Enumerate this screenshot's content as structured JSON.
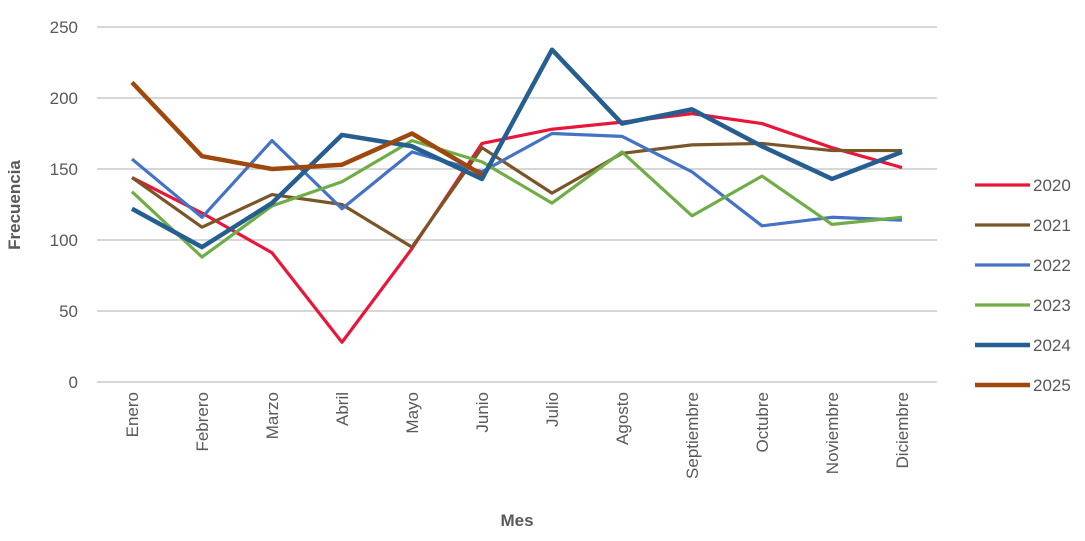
{
  "chart_data": {
    "type": "line",
    "x_label": "Mes",
    "y_label": "Frecuencia",
    "categories": [
      "Enero",
      "Febrero",
      "Marzo",
      "Abril",
      "Mayo",
      "Junio",
      "Julio",
      "Agosto",
      "Septiembre",
      "Octubre",
      "Noviembre",
      "Diciembre"
    ],
    "series": [
      {
        "name": "2020",
        "color": "#e8173a",
        "values": [
          144,
          119,
          91,
          28,
          94,
          168,
          178,
          183,
          189,
          182,
          165,
          151
        ]
      },
      {
        "name": "2021",
        "color": "#7a5527",
        "values": [
          144,
          109,
          132,
          125,
          95,
          165,
          133,
          161,
          167,
          168,
          163,
          163
        ]
      },
      {
        "name": "2022",
        "color": "#4472c4",
        "values": [
          157,
          116,
          170,
          122,
          162,
          148,
          175,
          173,
          148,
          110,
          116,
          114
        ]
      },
      {
        "name": "2023",
        "color": "#70ad47",
        "values": [
          134,
          88,
          124,
          141,
          170,
          155,
          126,
          162,
          117,
          145,
          111,
          116
        ]
      },
      {
        "name": "2024",
        "color": "#255e91",
        "values": [
          122,
          95,
          126,
          174,
          166,
          143,
          234,
          182,
          192,
          166,
          143,
          162
        ]
      },
      {
        "name": "2025",
        "color": "#9e480e",
        "values": [
          211,
          159,
          150,
          153,
          175,
          146,
          null,
          null,
          null,
          null,
          null,
          null
        ]
      }
    ],
    "ylim": [
      0,
      250
    ],
    "yticks": [
      0,
      50,
      100,
      150,
      200,
      250
    ],
    "grid": true,
    "legend": "right"
  }
}
